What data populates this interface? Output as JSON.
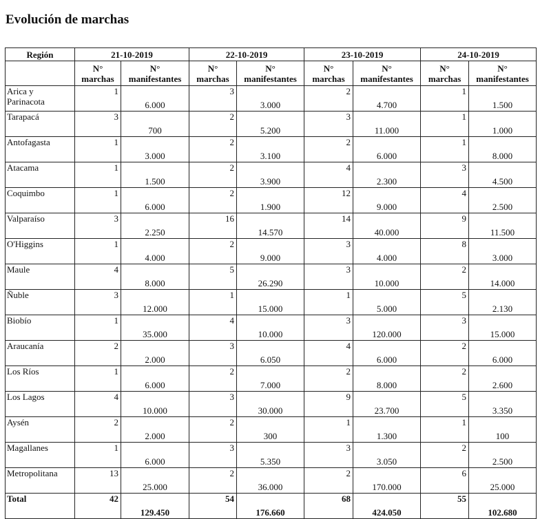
{
  "title": "Evolución de marchas",
  "table": {
    "region_header": "Región",
    "dates": [
      "21-10-2019",
      "22-10-2019",
      "23-10-2019",
      "24-10-2019"
    ],
    "sub_marchas": "N° marchas",
    "sub_manifestantes": "N° manifestantes",
    "rows": [
      [
        "Arica y Parinacota",
        "1",
        "6.000",
        "3",
        "3.000",
        "2",
        "4.700",
        "1",
        "1.500"
      ],
      [
        "Tarapacá",
        "3",
        "700",
        "2",
        "5.200",
        "3",
        "11.000",
        "1",
        "1.000"
      ],
      [
        "Antofagasta",
        "1",
        "3.000",
        "2",
        "3.100",
        "2",
        "6.000",
        "1",
        "8.000"
      ],
      [
        "Atacama",
        "1",
        "1.500",
        "2",
        "3.900",
        "4",
        "2.300",
        "3",
        "4.500"
      ],
      [
        "Coquimbo",
        "1",
        "6.000",
        "2",
        "1.900",
        "12",
        "9.000",
        "4",
        "2.500"
      ],
      [
        "Valparaíso",
        "3",
        "2.250",
        "16",
        "14.570",
        "14",
        "40.000",
        "9",
        "11.500"
      ],
      [
        "O'Higgins",
        "1",
        "4.000",
        "2",
        "9.000",
        "3",
        "4.000",
        "8",
        "3.000"
      ],
      [
        "Maule",
        "4",
        "8.000",
        "5",
        "26.290",
        "3",
        "10.000",
        "2",
        "14.000"
      ],
      [
        "Ñuble",
        "3",
        "12.000",
        "1",
        "15.000",
        "1",
        "5.000",
        "5",
        "2.130"
      ],
      [
        "Biobío",
        "1",
        "35.000",
        "4",
        "10.000",
        "3",
        "120.000",
        "3",
        "15.000"
      ],
      [
        "Araucanía",
        "2",
        "2.000",
        "3",
        "6.050",
        "4",
        "6.000",
        "2",
        "6.000"
      ],
      [
        "Los Ríos",
        "1",
        "6.000",
        "2",
        "7.000",
        "2",
        "8.000",
        "2",
        "2.600"
      ],
      [
        "Los Lagos",
        "4",
        "10.000",
        "3",
        "30.000",
        "9",
        "23.700",
        "5",
        "3.350"
      ],
      [
        "Aysén",
        "2",
        "2.000",
        "2",
        "300",
        "1",
        "1.300",
        "1",
        "100"
      ],
      [
        "Magallanes",
        "1",
        "6.000",
        "3",
        "5.350",
        "3",
        "3.050",
        "2",
        "2.500"
      ],
      [
        "Metropolitana",
        "13",
        "25.000",
        "2",
        "36.000",
        "2",
        "170.000",
        "6",
        "25.000"
      ]
    ],
    "total": [
      "Total",
      "42",
      "129.450",
      "54",
      "176.660",
      "68",
      "424.050",
      "55",
      "102.680"
    ]
  }
}
